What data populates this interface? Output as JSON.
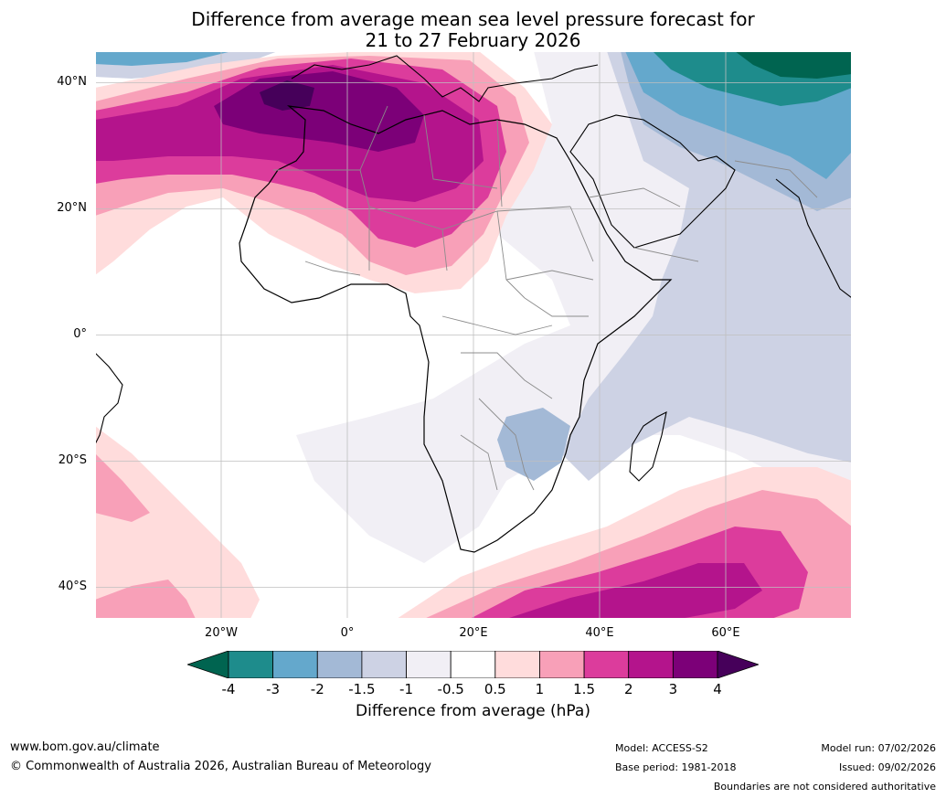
{
  "title": {
    "line1": "Difference from average mean sea level pressure forecast for",
    "line2": "21 to 27 February 2026"
  },
  "map": {
    "lat_labels": [
      "40°N",
      "20°N",
      "0°",
      "20°S",
      "40°S"
    ],
    "lon_labels": [
      "20°W",
      "0°",
      "20°E",
      "40°E",
      "60°E"
    ],
    "extent": {
      "lon_min": -40,
      "lon_max": 80,
      "lat_min": -45,
      "lat_max": 45
    }
  },
  "colorbar": {
    "ticks": [
      "-4",
      "-3",
      "-2",
      "-1.5",
      "-1",
      "-0.5",
      "0.5",
      "1",
      "1.5",
      "2",
      "3",
      "4"
    ],
    "colors": [
      "#1e8c8c",
      "#64a8cc",
      "#a3b9d6",
      "#cdd2e4",
      "#f1eff5",
      "#ffffff",
      "#ffdcdc",
      "#f8a0b8",
      "#dc3c9c",
      "#b4148c",
      "#7c0078"
    ],
    "under_color": "#006450",
    "over_color": "#46005a",
    "label": "Difference from average (hPa)"
  },
  "footer": {
    "website": "www.bom.gov.au/climate",
    "copyright": "© Commonwealth of Australia 2026, Australian Bureau of Meteorology",
    "model": "Model: ACCESS-S2",
    "base_period": "Base period: 1981-2018",
    "model_run": "Model run: 07/02/2026",
    "issued": "Issued: 09/02/2026",
    "disclaimer": "Boundaries are not considered authoritative"
  }
}
